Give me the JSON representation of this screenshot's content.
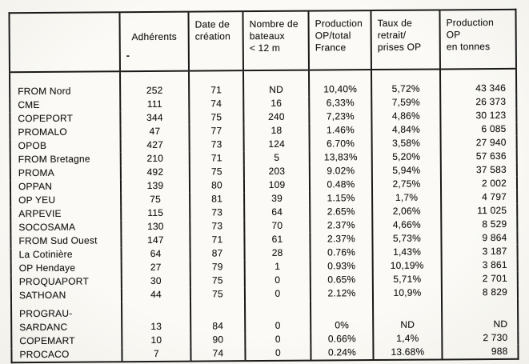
{
  "table": {
    "header_artifact": "-",
    "columns": [
      {
        "label": ""
      },
      {
        "label": "Adhérents"
      },
      {
        "label": "Date de\ncréation"
      },
      {
        "label": "Nombre de\nbateaux\n< 12 m"
      },
      {
        "label": "Production\nOP/total\nFrance"
      },
      {
        "label": "Taux de\nretrait/\nprises OP"
      },
      {
        "label": "Production\nOP\nen tonnes"
      }
    ],
    "rows": [
      {
        "name": "FROM Nord",
        "adherents": "252",
        "creation": "71",
        "bateaux": "ND",
        "prod_pct": "10,40%",
        "retrait_pct": "5,72%",
        "tonnes": "43 346"
      },
      {
        "name": "CME",
        "adherents": "111",
        "creation": "74",
        "bateaux": "16",
        "prod_pct": "6,33%",
        "retrait_pct": "7,59%",
        "tonnes": "26 373"
      },
      {
        "name": "COPEPORT",
        "adherents": "344",
        "creation": "75",
        "bateaux": "240",
        "prod_pct": "7,23%",
        "retrait_pct": "4,86%",
        "tonnes": "30 123"
      },
      {
        "name": "PROMALO",
        "adherents": "47",
        "creation": "77",
        "bateaux": "18",
        "prod_pct": "1.46%",
        "retrait_pct": "4,84%",
        "tonnes": "6 085"
      },
      {
        "name": "OPOB",
        "adherents": "427",
        "creation": "73",
        "bateaux": "124",
        "prod_pct": "6.70%",
        "retrait_pct": "3,58%",
        "tonnes": "27 940"
      },
      {
        "name": "FROM Bretagne",
        "adherents": "210",
        "creation": "71",
        "bateaux": "5",
        "prod_pct": "13,83%",
        "retrait_pct": "5,20%",
        "tonnes": "57 636"
      },
      {
        "name": "PROMA",
        "adherents": "492",
        "creation": "75",
        "bateaux": "203",
        "prod_pct": "9.02%",
        "retrait_pct": "5,94%",
        "tonnes": "37 583"
      },
      {
        "name": "OPPAN",
        "adherents": "139",
        "creation": "80",
        "bateaux": "109",
        "prod_pct": "0.48%",
        "retrait_pct": "2,75%",
        "tonnes": "2 002"
      },
      {
        "name": "OP YEU",
        "adherents": "75",
        "creation": "81",
        "bateaux": "39",
        "prod_pct": "1.15%",
        "retrait_pct": "1,7%",
        "tonnes": "4 797"
      },
      {
        "name": "ARPEVIE",
        "adherents": "115",
        "creation": "73",
        "bateaux": "64",
        "prod_pct": "2.65%",
        "retrait_pct": "2,06%",
        "tonnes": "11 025"
      },
      {
        "name": "SOCOSAMA",
        "adherents": "130",
        "creation": "73",
        "bateaux": "70",
        "prod_pct": "2.37%",
        "retrait_pct": "4,66%",
        "tonnes": "8 529"
      },
      {
        "name": "FROM Sud Ouest",
        "adherents": "147",
        "creation": "71",
        "bateaux": "61",
        "prod_pct": "2.37%",
        "retrait_pct": "5,73%",
        "tonnes": "9 864"
      },
      {
        "name": "La Cotinière",
        "adherents": "64",
        "creation": "87",
        "bateaux": "28",
        "prod_pct": "0.76%",
        "retrait_pct": "1,43%",
        "tonnes": "3 187"
      },
      {
        "name": "OP Hendaye",
        "adherents": "27",
        "creation": "79",
        "bateaux": "1",
        "prod_pct": "0.93%",
        "retrait_pct": "10,19%",
        "tonnes": "3 861"
      },
      {
        "name": "PROQUAPORT",
        "adherents": "30",
        "creation": "75",
        "bateaux": "0",
        "prod_pct": "0.65%",
        "retrait_pct": "5,71%",
        "tonnes": "2 701"
      },
      {
        "name": "SATHOAN",
        "adherents": "44",
        "creation": "75",
        "bateaux": "0",
        "prod_pct": "2.12%",
        "retrait_pct": "10,9%",
        "tonnes": "8 829"
      },
      {
        "name": "PROGRAU-\nSARDANC",
        "adherents": "13",
        "creation": "84",
        "bateaux": "0",
        "prod_pct": "0%",
        "retrait_pct": "ND",
        "tonnes": "ND"
      },
      {
        "name": "COPEMART",
        "adherents": "10",
        "creation": "90",
        "bateaux": "0",
        "prod_pct": "0.66%",
        "retrait_pct": "1,4%",
        "tonnes": "2 730"
      },
      {
        "name": "PROCACO",
        "adherents": "7",
        "creation": "74",
        "bateaux": "0",
        "prod_pct": "0.24%",
        "retrait_pct": "13.68%",
        "tonnes": "988"
      }
    ]
  }
}
